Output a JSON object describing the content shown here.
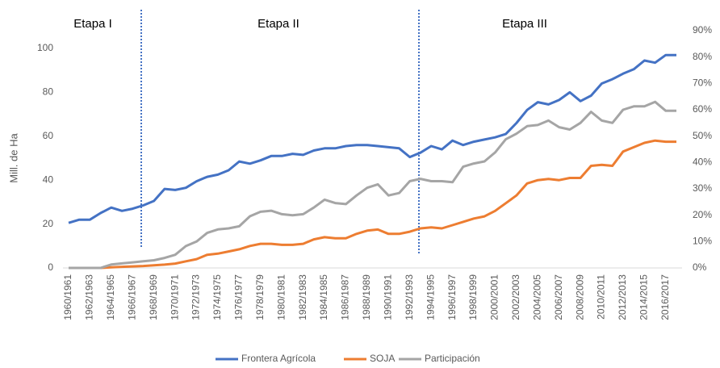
{
  "chart_data": {
    "type": "line",
    "y_label": "Mill. de Ha",
    "annotations": [
      "Etapa I",
      "Etapa II",
      "Etapa III"
    ],
    "categories": [
      "1960/1961",
      null,
      "1962/1963",
      null,
      "1964/1965",
      null,
      "1966/1967",
      null,
      "1968/1969",
      null,
      "1970/1971",
      null,
      "1972/1973",
      null,
      "1974/1975",
      null,
      "1976/1977",
      null,
      "1978/1979",
      null,
      "1980/1981",
      null,
      "1982/1983",
      null,
      "1984/1985",
      null,
      "1986/1987",
      null,
      "1988/1989",
      null,
      "1990/1991",
      null,
      "1992/1993",
      null,
      "1994/1995",
      null,
      "1996/1997",
      null,
      "1998/1999",
      null,
      "2000/2001",
      null,
      "2002/2003",
      null,
      "2004/2005",
      null,
      "2006/2007",
      null,
      "2008/2009",
      null,
      "2010/2011",
      null,
      "2012/2013",
      null,
      "2014/2015",
      null,
      "2016/2017",
      null
    ],
    "series": [
      {
        "name": "Frontera Agrícola",
        "color": "#4472c4",
        "values": [
          20.5,
          22,
          22,
          25,
          27.5,
          26,
          27,
          28.5,
          30.5,
          36,
          35.5,
          36.5,
          39.5,
          41.5,
          42.5,
          44.5,
          48.5,
          47.5,
          49,
          51,
          51,
          52,
          51.5,
          53.5,
          54.5,
          54.5,
          55.5,
          56,
          56,
          55.5,
          55,
          54.5,
          50.5,
          52.5,
          55.5,
          54,
          58,
          56,
          57.5,
          58.5,
          59.5,
          61,
          66,
          72,
          75.5,
          74.5,
          76.5,
          80,
          76,
          78.5,
          84,
          86,
          88.5,
          90.5,
          94.5,
          93.5,
          97,
          97
        ]
      },
      {
        "name": "SOJA",
        "color": "#ed7d31",
        "values": [
          0,
          0,
          0,
          0,
          0.3,
          0.5,
          0.7,
          0.9,
          1.2,
          1.5,
          2,
          3,
          4,
          6,
          6.5,
          7.5,
          8.5,
          10,
          11,
          11,
          10.5,
          10.5,
          11,
          13,
          14,
          13.5,
          13.5,
          15.5,
          17,
          17.5,
          15.5,
          15.5,
          16.5,
          18,
          18.5,
          18,
          19.5,
          21,
          22.5,
          23.5,
          26,
          29.5,
          33,
          38.5,
          40,
          40.5,
          40,
          41,
          41,
          46.5,
          47,
          46.5,
          53,
          55,
          57,
          58,
          57.5,
          57.5
        ]
      },
      {
        "name": "Participación",
        "color": "#a5a5a5",
        "axis": "y2",
        "values": [
          0,
          0,
          0,
          0,
          1.3,
          1.7,
          2.1,
          2.5,
          2.9,
          3.8,
          5,
          8.3,
          10,
          13.3,
          14.6,
          15,
          15.8,
          19.6,
          21.3,
          21.7,
          20.4,
          20,
          20.4,
          22.9,
          25.9,
          24.6,
          24.2,
          27.5,
          30.4,
          31.7,
          27.5,
          28.4,
          32.9,
          33.8,
          32.9,
          32.9,
          32.5,
          38.4,
          39.6,
          40.4,
          43.8,
          48.8,
          50.9,
          53.8,
          54.2,
          55.9,
          53.4,
          52.5,
          55,
          59.2,
          55.9,
          55,
          60,
          61.3,
          61.3,
          63,
          59.6,
          59.6
        ]
      }
    ],
    "ylim": [
      0,
      100
    ],
    "yticks": [
      0,
      20,
      40,
      60,
      80,
      100
    ],
    "y2lim": [
      0,
      90
    ],
    "y2ticks": [
      {
        "value": 0,
        "label": "0%"
      },
      {
        "value": 10,
        "label": "10%"
      },
      {
        "value": 20,
        "label": "20%"
      },
      {
        "value": 30,
        "label": "30%"
      },
      {
        "value": 40,
        "label": "40%"
      },
      {
        "value": 50,
        "label": "50%"
      },
      {
        "value": 60,
        "label": "60%"
      },
      {
        "value": 70,
        "label": "70%"
      },
      {
        "value": 80,
        "label": "80%"
      },
      {
        "value": 90,
        "label": "90%"
      }
    ],
    "legend": "bottom"
  }
}
